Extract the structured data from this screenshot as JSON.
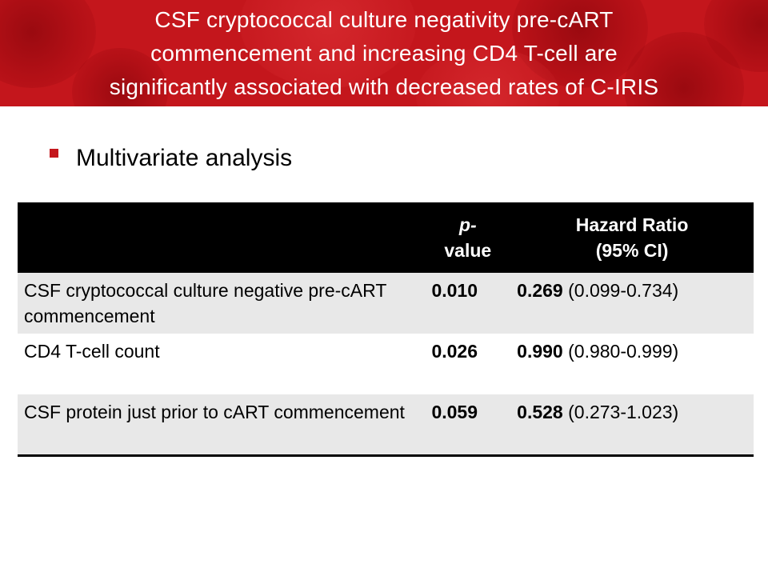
{
  "slide": {
    "title_lines": [
      "CSF cryptococcal culture negativity pre-cART",
      "commencement and increasing CD4 T-cell are",
      "significantly associated with decreased rates of C-IRIS"
    ],
    "bullet": "Multivariate analysis",
    "accent_color": "#c4161c"
  },
  "table": {
    "headers": {
      "pvalue_line1": "p-",
      "pvalue_line2": "value",
      "hr_line1": "Hazard Ratio",
      "hr_line2": "(95% CI)"
    },
    "rows": [
      {
        "label": "CSF cryptococcal culture negative pre-cART commencement",
        "p_value": "0.010",
        "hr": "0.269",
        "ci": "(0.099-0.734)"
      },
      {
        "label": "CD4 T-cell count",
        "p_value": "0.026",
        "hr": "0.990",
        "ci": "(0.980-0.999)"
      },
      {
        "label": "CSF protein just prior to cART commencement",
        "p_value": "0.059",
        "hr": "0.528",
        "ci": "(0.273-1.023)"
      }
    ]
  }
}
